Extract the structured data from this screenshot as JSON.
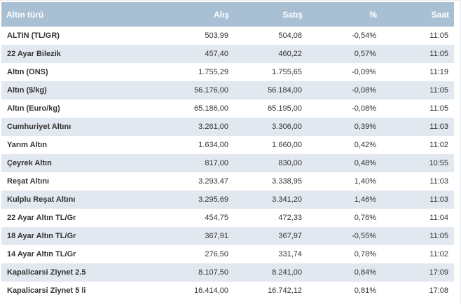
{
  "table": {
    "headers": [
      "Altın türü",
      "Alış",
      "Satış",
      "%",
      "Saat"
    ],
    "rows": [
      [
        "ALTIN (TL/GR)",
        "503,99",
        "504,08",
        "-0,54%",
        "11:05"
      ],
      [
        "22 Ayar Bilezik",
        "457,40",
        "460,22",
        "0,57%",
        "11:05"
      ],
      [
        "Altın (ONS)",
        "1.755,29",
        "1.755,65",
        "-0,09%",
        "11:19"
      ],
      [
        "Altın ($/kg)",
        "56.176,00",
        "56.184,00",
        "-0,08%",
        "11:05"
      ],
      [
        "Altın (Euro/kg)",
        "65.186,00",
        "65.195,00",
        "-0,08%",
        "11:05"
      ],
      [
        "Cumhuriyet Altını",
        "3.261,00",
        "3.306,00",
        "0,39%",
        "11:03"
      ],
      [
        "Yarım Altın",
        "1.634,00",
        "1.660,00",
        "0,42%",
        "11:02"
      ],
      [
        "Çeyrek Altın",
        "817,00",
        "830,00",
        "0,48%",
        "10:55"
      ],
      [
        "Reşat Altını",
        "3.293,47",
        "3.338,95",
        "1,40%",
        "11:03"
      ],
      [
        "Kulplu Reşat Altını",
        "3.295,69",
        "3.341,20",
        "1,46%",
        "11:03"
      ],
      [
        "22 Ayar Altın TL/Gr",
        "454,75",
        "472,33",
        "0,76%",
        "11:04"
      ],
      [
        "18 Ayar Altın TL/Gr",
        "367,91",
        "367,97",
        "-0,55%",
        "11:05"
      ],
      [
        "14 Ayar Altın TL/Gr",
        "276,50",
        "331,74",
        "0,78%",
        "11:02"
      ],
      [
        "Kapalicarsi Ziynet 2.5",
        "8.107,50",
        "8.241,00",
        "0,84%",
        "17:09"
      ],
      [
        "Kapalicarsi Ziynet 5 li",
        "16.414,00",
        "16.742,12",
        "0,81%",
        "17:08"
      ]
    ]
  },
  "colors": {
    "header_bg": "#a8bfd4",
    "row_alt_bg": "#e2e8ef",
    "text": "#333333"
  }
}
